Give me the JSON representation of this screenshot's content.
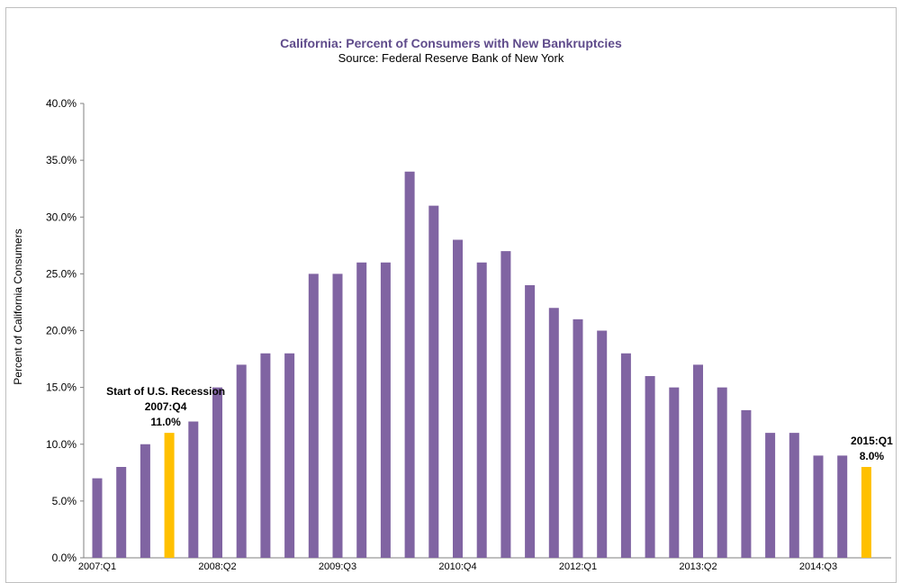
{
  "chart_data": {
    "type": "bar",
    "title": "California: Percent of Consumers with New Bankruptcies",
    "subtitle": "Source: Federal Reserve Bank of New York",
    "ylabel": "Percent of California Consumers",
    "xlabel": "",
    "ylim": [
      0,
      40
    ],
    "yticks": [
      "0.0%",
      "5.0%",
      "10.0%",
      "15.0%",
      "20.0%",
      "25.0%",
      "30.0%",
      "35.0%",
      "40.0%"
    ],
    "categories": [
      "2007:Q1",
      "2007:Q2",
      "2007:Q3",
      "2007:Q4",
      "2008:Q1",
      "2008:Q2",
      "2008:Q3",
      "2008:Q4",
      "2009:Q1",
      "2009:Q2",
      "2009:Q3",
      "2009:Q4",
      "2010:Q1",
      "2010:Q2",
      "2010:Q3",
      "2010:Q4",
      "2011:Q1",
      "2011:Q2",
      "2011:Q3",
      "2011:Q4",
      "2012:Q1",
      "2012:Q2",
      "2012:Q3",
      "2012:Q4",
      "2013:Q1",
      "2013:Q2",
      "2013:Q3",
      "2013:Q4",
      "2014:Q1",
      "2014:Q2",
      "2014:Q3",
      "2014:Q4",
      "2015:Q1"
    ],
    "x_tick_labels": [
      "2007:Q1",
      "2008:Q2",
      "2009:Q3",
      "2010:Q4",
      "2012:Q1",
      "2013:Q2",
      "2014:Q3"
    ],
    "values": [
      7,
      8,
      10,
      11,
      12,
      15,
      17,
      18,
      18,
      25,
      25,
      26,
      26,
      34,
      31,
      28,
      26,
      27,
      24,
      22,
      21,
      20,
      18,
      16,
      15,
      17,
      15,
      13,
      11,
      11,
      9,
      9,
      8
    ],
    "highlighted": [
      "2007:Q4",
      "2015:Q1"
    ],
    "colors": {
      "bar": "#8064a2",
      "highlight": "#ffc000",
      "title": "#5f4b8b"
    },
    "annotations": [
      {
        "category": "2007:Q4",
        "lines": [
          "Start of U.S. Recession",
          "2007:Q4",
          "11.0%"
        ]
      },
      {
        "category": "2015:Q1",
        "lines": [
          "2015:Q1",
          "8.0%"
        ]
      }
    ],
    "grid": false,
    "legend": "none"
  }
}
